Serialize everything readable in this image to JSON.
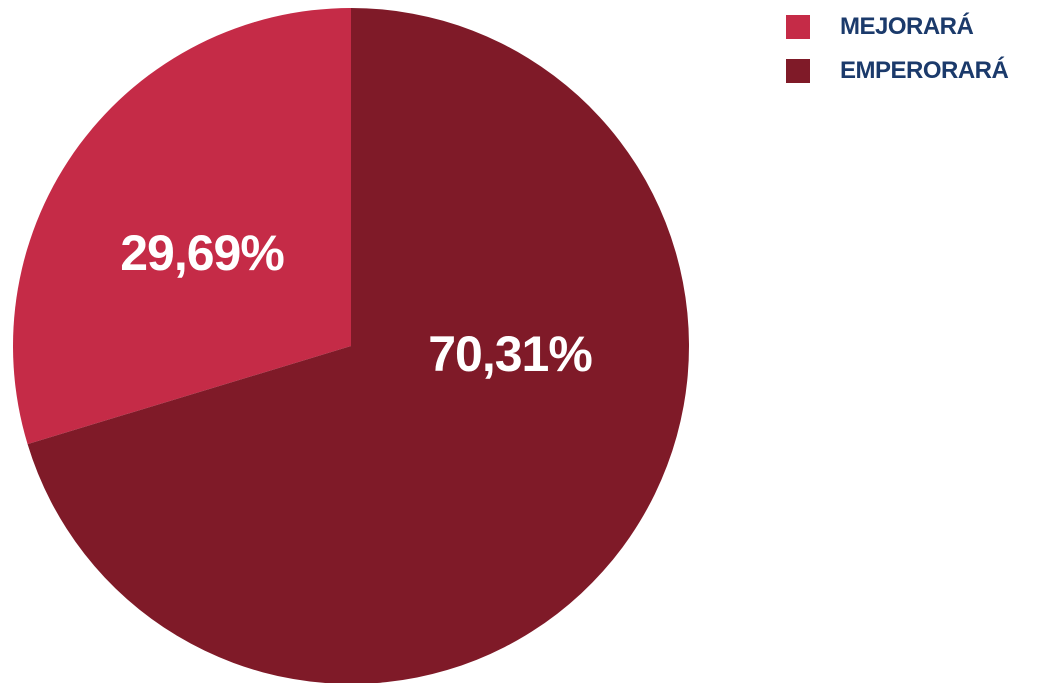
{
  "chart_data": {
    "type": "pie",
    "title": "",
    "slices": [
      {
        "name": "MEJORARÁ",
        "value": 29.69,
        "label": "29,69%",
        "color": "#c52b47"
      },
      {
        "name": "EMPERORARÁ",
        "value": 70.31,
        "label": "70,31%",
        "color": "#7f1a28"
      }
    ],
    "start": "12 o'clock",
    "direction": "counter-clockwise for first slice",
    "legend_position": "top-right"
  }
}
